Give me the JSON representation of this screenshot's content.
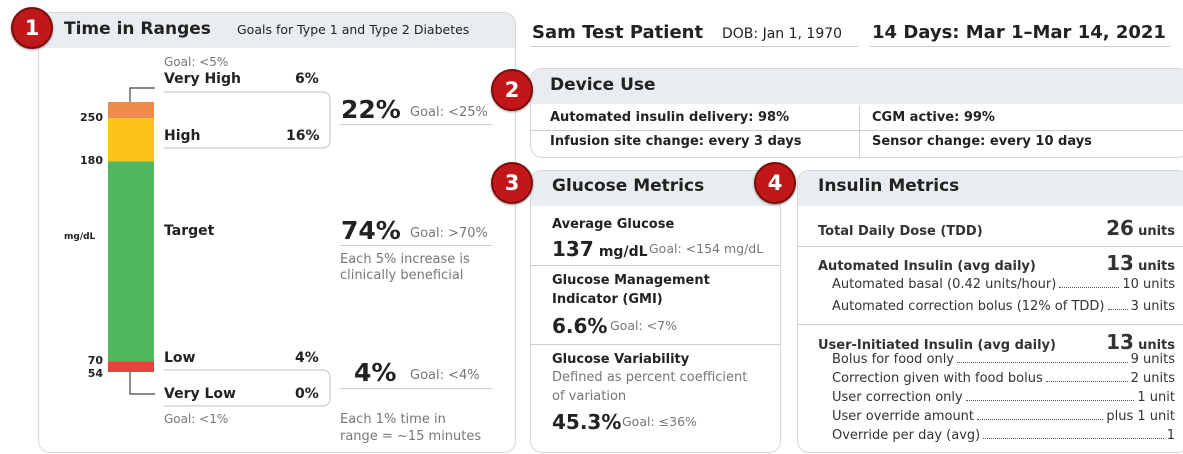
{
  "time_in_ranges": {
    "badge": "1",
    "title": "Time in Ranges",
    "subtitle": "Goals for Type 1 and Type 2 Diabetes",
    "scale_unit": "mg/dL",
    "scale_ticks": [
      "250",
      "180",
      "70",
      "54"
    ],
    "ranges": [
      {
        "name": "Very High",
        "value": 6,
        "label": "6%",
        "color": "#f08a4b",
        "goal": "Goal: <5%"
      },
      {
        "name": "High",
        "value": 16,
        "label": "16%",
        "color": "#fcc419"
      },
      {
        "name": "Target",
        "value": 74,
        "label": "74%",
        "color": "#52b85f"
      },
      {
        "name": "Low",
        "value": 4,
        "label": "4%",
        "color": "#e8423f"
      },
      {
        "name": "Very Low",
        "value": 0,
        "label": "0%",
        "color": "#b0201e",
        "goal": "Goal: <1%"
      }
    ],
    "summaries": [
      {
        "value": "22%",
        "goal": "Goal: <25%"
      },
      {
        "value": "74%",
        "goal": "Goal: >70%",
        "note": [
          "Each 5% increase is",
          "clinically beneficial"
        ]
      },
      {
        "value": "4%",
        "goal": "Goal: <4%",
        "note": [
          "Each 1% time in",
          "range = ~15 minutes"
        ]
      }
    ]
  },
  "patient": {
    "name": "Sam Test Patient",
    "dob": "DOB: Jan 1, 1970",
    "period": "14 Days: Mar 1–Mar 14, 2021"
  },
  "device_use": {
    "badge": "2",
    "title": "Device Use",
    "items": [
      [
        "Automated insulin delivery: 98%",
        "CGM active: 99%"
      ],
      [
        "Infusion site change: every 3 days",
        "Sensor change: every 10 days"
      ]
    ]
  },
  "glucose_metrics": {
    "badge": "3",
    "title": "Glucose Metrics",
    "average": {
      "title": "Average Glucose",
      "value": "137",
      "unit": "mg/dL",
      "goal": "Goal: <154 mg/dL"
    },
    "gmi": {
      "title": [
        "Glucose Management",
        "Indicator (GMI)"
      ],
      "value": "6.6%",
      "goal": "Goal: <7%"
    },
    "variability": {
      "title": "Glucose Variability",
      "note": [
        "Defined as percent coefficient",
        "of variation"
      ],
      "value": "45.3%",
      "goal": "Goal: ≤36%"
    }
  },
  "insulin_metrics": {
    "badge": "4",
    "title": "Insulin Metrics",
    "tdd": {
      "label": "Total Daily Dose (TDD)",
      "value": "26",
      "unit": "units"
    },
    "automated": {
      "label": "Automated Insulin (avg daily)",
      "value": "13",
      "unit": "units",
      "items": [
        {
          "label": "Automated basal (0.42 units/hour)",
          "value": "10 units"
        },
        {
          "label": "Automated correction bolus (12% of TDD)",
          "value": "3 units"
        }
      ]
    },
    "user": {
      "label": "User-Initiated Insulin (avg daily)",
      "value": "13",
      "unit": "units",
      "items": [
        {
          "label": "Bolus for food only",
          "value": "9 units"
        },
        {
          "label": "Correction given with food bolus",
          "value": "2 units"
        },
        {
          "label": "User correction only",
          "value": "1 unit"
        },
        {
          "label": "User override amount",
          "value": "plus 1 unit"
        },
        {
          "label": "Override per day (avg)",
          "value": "1"
        }
      ]
    }
  }
}
